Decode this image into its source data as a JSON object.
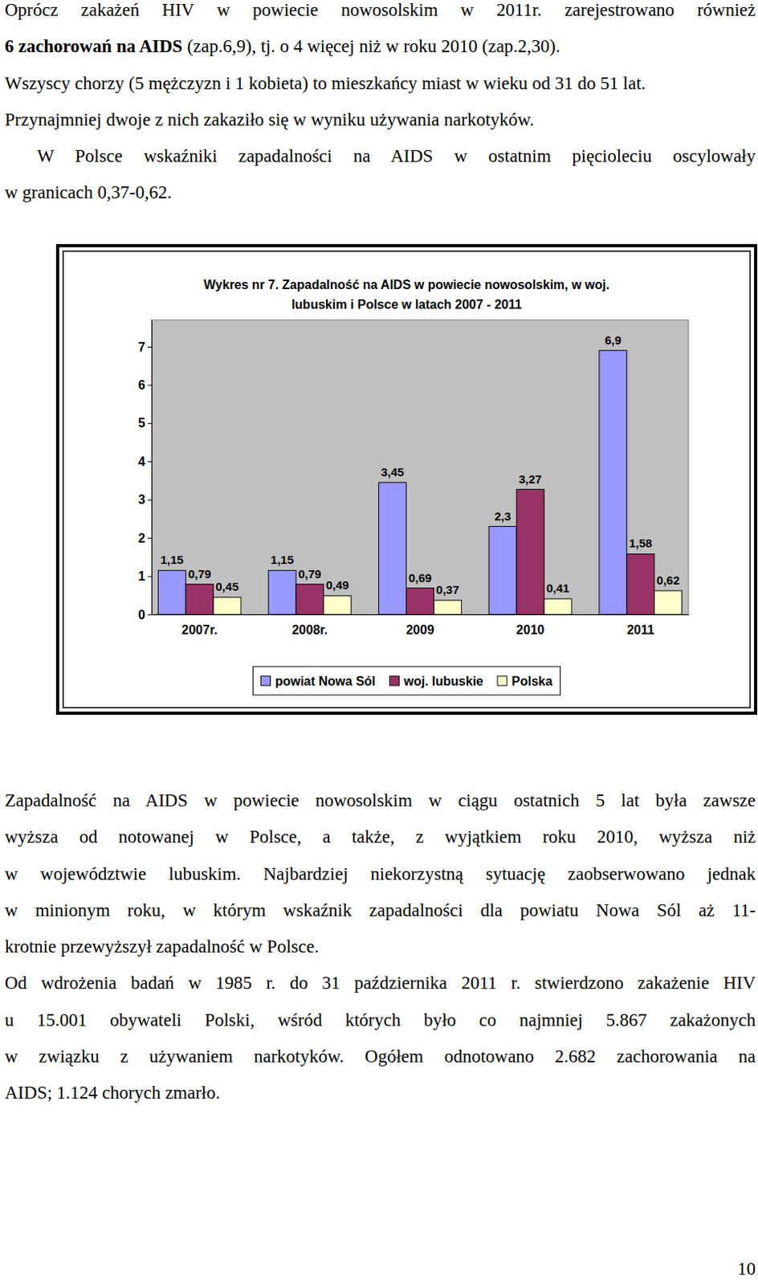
{
  "top_text": [
    [
      "Oprócz zakażeń HIV w powiecie nowosolskim w 2011r. zarejestrowano również",
      {
        "bold": "6 zachorowań na AIDS",
        "rest": " (zap.6,9), tj. o 4 więcej niż w roku 2010 (zap.2,30)."
      }
    ],
    [
      "Wszyscy chorzy (5 mężczyzn i 1 kobieta) to mieszkańcy miast w wieku od 31 do 51 lat."
    ],
    [
      "Przynajmniej dwoje z nich zakaziło się w wyniku używania narkotyków."
    ],
    [
      "W Polsce wskaźniki zapadalności na AIDS w ostatnim pięcioleciu oscylowały",
      "w granicach 0,37-0,62."
    ]
  ],
  "chart_data": {
    "type": "bar",
    "title": [
      "Wykres nr 7. Zapadalność na AIDS w powiecie nowosolskim, w woj.",
      "lubuskim i Polsce w latach 2007 - 2011"
    ],
    "categories": [
      "2007r.",
      "2008r.",
      "2009",
      "2010",
      "2011"
    ],
    "series": [
      {
        "name": "powiat Nowa Sól",
        "color": "#9999ff",
        "values": [
          1.15,
          1.15,
          3.45,
          2.3,
          6.9
        ],
        "value_labels": [
          "1,15",
          "1,15",
          "3,45",
          "2,3",
          "6,9"
        ]
      },
      {
        "name": "woj. lubuskie",
        "color": "#993366",
        "values": [
          0.79,
          0.79,
          0.69,
          3.27,
          1.58
        ],
        "value_labels": [
          "0,79",
          "0,79",
          "0,69",
          "3,27",
          "1,58"
        ]
      },
      {
        "name": "Polska",
        "color": "#ffffcc",
        "values": [
          0.45,
          0.49,
          0.37,
          0.41,
          0.62
        ],
        "value_labels": [
          "0,45",
          "0,49",
          "0,37",
          "0,41",
          "0,62"
        ]
      }
    ],
    "ylim": [
      0,
      7.7
    ],
    "yticks": [
      0,
      1,
      2,
      3,
      4,
      5,
      6,
      7
    ],
    "grid": false,
    "data_labels": true,
    "legend": "bottom"
  },
  "bottom_text": [
    [
      "Zapadalność na AIDS w powiecie nowosolskim w ciągu ostatnich 5 lat była zawsze",
      "wyższa od notowanej w Polsce, a także, z wyjątkiem roku 2010, wyższa niż",
      "w województwie lubuskim. Najbardziej niekorzystną sytuację zaobserwowano jednak",
      "w minionym roku, w którym wskaźnik zapadalności dla powiatu Nowa Sól aż 11-",
      "krotnie przewyższył zapadalność w Polsce."
    ],
    [
      "Od wdrożenia badań w 1985 r. do 31 października 2011 r. stwierdzono zakażenie HIV",
      "u 15.001 obywateli Polski, wśród których było co najmniej 5.867 zakażonych",
      "w związku z używaniem narkotyków. Ogółem odnotowano 2.682 zachorowania na",
      "AIDS; 1.124 chorych zmarło."
    ]
  ],
  "page_number": "10"
}
